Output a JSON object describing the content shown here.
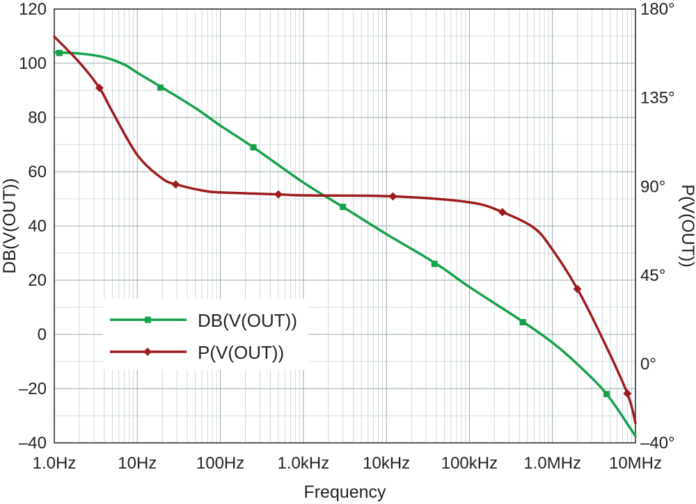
{
  "chart_data": {
    "type": "line",
    "xlabel": "Frequency",
    "ylabel": "DB(V(OUT))",
    "y2label": "P(V(OUT))",
    "x_scale": "log",
    "xlim": [
      1,
      10000000
    ],
    "ylim": [
      -40,
      120
    ],
    "y2lim": [
      -40,
      180
    ],
    "x_tick_values": [
      1,
      10,
      100,
      1000,
      10000,
      100000,
      1000000,
      10000000
    ],
    "x_ticks": [
      "1.0Hz",
      "10Hz",
      "100Hz",
      "1.0kHz",
      "10kHz",
      "100kHz",
      "1.0MHz",
      "10MHz"
    ],
    "y_tick_values": [
      -40,
      -20,
      0,
      20,
      40,
      60,
      80,
      100,
      120
    ],
    "y_ticks": [
      "–40",
      "–20",
      "0",
      "20",
      "40",
      "60",
      "80",
      "100",
      "120"
    ],
    "y2_tick_values": [
      -40,
      0,
      45,
      90,
      135,
      180
    ],
    "y2_ticks": [
      "–40°",
      "0°",
      "45°",
      "90°",
      "135°",
      "180°"
    ],
    "grid": true,
    "legend_position": "lower-left",
    "series": [
      {
        "name": "DB(V(OUT))",
        "axis": "left",
        "color": "#15a04a",
        "marker": "square",
        "x": [
          1,
          2,
          4,
          7,
          10,
          20,
          50,
          100,
          250,
          1000,
          3000,
          10000,
          40000,
          100000,
          450000,
          1000000,
          2000000,
          4500000,
          10000000
        ],
        "y": [
          104,
          103.6,
          102.2,
          99.5,
          96.5,
          91,
          83.5,
          77,
          69,
          56,
          47,
          37,
          26,
          17.5,
          4.5,
          -3,
          -11,
          -22,
          -37.5
        ],
        "marker_x": [
          1.15,
          19,
          250,
          3000,
          38000,
          440000,
          4500000
        ],
        "marker_y": [
          103.8,
          91,
          69,
          47,
          26,
          4.5,
          -22
        ]
      },
      {
        "name": "P(V(OUT))",
        "axis": "right",
        "color": "#9d1b1e",
        "marker": "diamond",
        "x": [
          1,
          2,
          3.5,
          5,
          10,
          20,
          30,
          60,
          100,
          500,
          1000,
          12000,
          100000,
          250000,
          600000,
          1000000,
          2000000,
          4000000,
          8000000,
          10000000
        ],
        "y": [
          166,
          153,
          140,
          128,
          106,
          94,
          91,
          88,
          87,
          86,
          85.5,
          85,
          82,
          77,
          69,
          58,
          38,
          13,
          -15,
          -30
        ],
        "marker_x": [
          3.5,
          29,
          500,
          12000,
          250000,
          2000000,
          8000000
        ],
        "marker_y": [
          140,
          91,
          86,
          85,
          77,
          38,
          -15
        ]
      }
    ]
  }
}
